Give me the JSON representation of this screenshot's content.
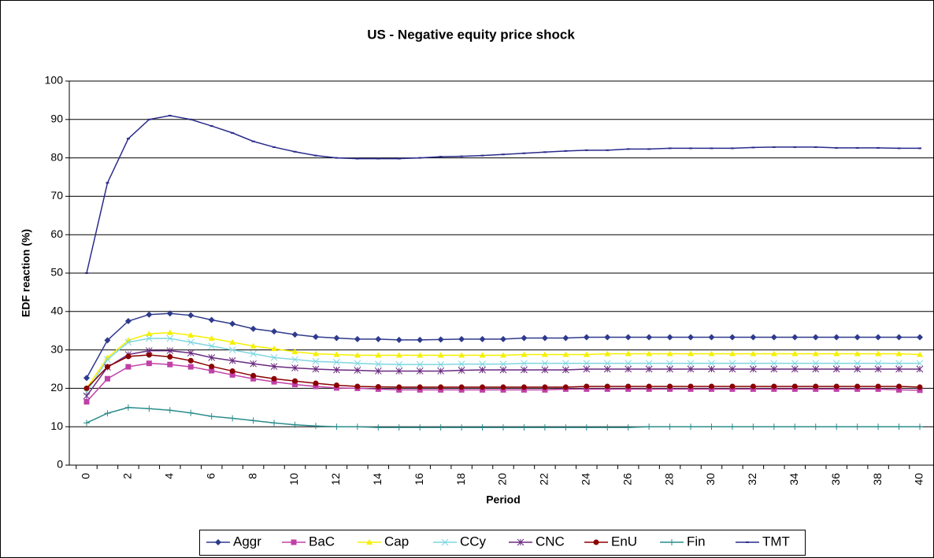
{
  "chart_data": {
    "type": "line",
    "title": "US - Negative equity price shock",
    "x_label": "Period",
    "y_label": "EDF reaction (%)",
    "x": [
      0,
      1,
      2,
      3,
      4,
      5,
      6,
      7,
      8,
      9,
      10,
      11,
      12,
      13,
      14,
      15,
      16,
      17,
      18,
      19,
      20,
      21,
      22,
      23,
      24,
      25,
      26,
      27,
      28,
      29,
      30,
      31,
      32,
      33,
      34,
      35,
      36,
      37,
      38,
      39,
      40
    ],
    "xlim": [
      0,
      40
    ],
    "xticks": [
      0,
      2,
      4,
      6,
      8,
      10,
      12,
      14,
      16,
      18,
      20,
      22,
      24,
      26,
      28,
      30,
      32,
      34,
      36,
      38,
      40
    ],
    "ylim": [
      0,
      100
    ],
    "yticks": [
      0,
      10,
      20,
      30,
      40,
      50,
      60,
      70,
      80,
      90,
      100
    ],
    "grid": true,
    "legend": "bottom",
    "series": [
      {
        "name": "Aggr",
        "color": "#2e3a8c",
        "marker": "diamond",
        "values": [
          22.7,
          32.5,
          37.5,
          39.2,
          39.5,
          39,
          37.8,
          36.8,
          35.5,
          34.8,
          34,
          33.4,
          33.1,
          32.8,
          32.8,
          32.6,
          32.6,
          32.7,
          32.8,
          32.8,
          32.8,
          33.1,
          33.1,
          33.1,
          33.3,
          33.3,
          33.3,
          33.3,
          33.3,
          33.3,
          33.3,
          33.3,
          33.3,
          33.3,
          33.3,
          33.3,
          33.3,
          33.3,
          33.3,
          33.3,
          33.3
        ]
      },
      {
        "name": "BaC",
        "color": "#c040a8",
        "marker": "square",
        "values": [
          16.5,
          22.5,
          25.6,
          26.5,
          26.2,
          25.6,
          24.6,
          23.5,
          22.5,
          21.7,
          21,
          20.5,
          20.1,
          20,
          19.8,
          19.6,
          19.6,
          19.6,
          19.6,
          19.6,
          19.6,
          19.6,
          19.6,
          19.8,
          19.8,
          19.8,
          19.8,
          19.8,
          19.8,
          19.8,
          19.8,
          19.8,
          19.8,
          19.8,
          19.8,
          19.8,
          19.8,
          19.8,
          19.8,
          19.6,
          19.5
        ]
      },
      {
        "name": "Cap",
        "color": "#f5f000",
        "marker": "triangle",
        "values": [
          20,
          28,
          32.5,
          34.2,
          34.5,
          33.8,
          33,
          32,
          31,
          30.3,
          29.5,
          29,
          28.8,
          28.6,
          28.6,
          28.6,
          28.6,
          28.6,
          28.6,
          28.6,
          28.6,
          28.8,
          28.8,
          28.8,
          28.8,
          29,
          29,
          29,
          29,
          29,
          29,
          29,
          29,
          29,
          29,
          29,
          29,
          29,
          29,
          29,
          28.8
        ]
      },
      {
        "name": "CCy",
        "color": "#7fd6e0",
        "marker": "x",
        "values": [
          19,
          27.5,
          32,
          33,
          33,
          32,
          31,
          30,
          29,
          28,
          27.5,
          27,
          26.8,
          26.5,
          26.3,
          26.2,
          26.2,
          26.2,
          26.3,
          26.3,
          26.3,
          26.5,
          26.5,
          26.5,
          26.5,
          26.5,
          26.5,
          26.5,
          26.5,
          26.5,
          26.5,
          26.5,
          26.5,
          26.5,
          26.5,
          26.5,
          26.5,
          26.5,
          26.5,
          26.5,
          26.5
        ]
      },
      {
        "name": "CNC",
        "color": "#6a2a80",
        "marker": "star",
        "values": [
          18,
          25.5,
          28.8,
          29.8,
          29.8,
          29.2,
          28,
          27.2,
          26.4,
          25.7,
          25.3,
          25,
          24.8,
          24.7,
          24.5,
          24.5,
          24.5,
          24.5,
          24.7,
          24.8,
          24.8,
          24.8,
          24.8,
          24.8,
          25,
          25,
          25,
          25,
          25,
          25,
          25,
          25,
          25,
          25,
          25,
          25,
          25,
          25,
          25,
          25,
          25
        ]
      },
      {
        "name": "EnU",
        "color": "#8b0000",
        "marker": "circle",
        "values": [
          20,
          25.6,
          28.3,
          28.7,
          28.2,
          27.2,
          25.7,
          24.5,
          23.3,
          22.5,
          21.9,
          21.3,
          20.8,
          20.5,
          20.4,
          20.3,
          20.3,
          20.3,
          20.3,
          20.3,
          20.3,
          20.3,
          20.3,
          20.3,
          20.5,
          20.5,
          20.5,
          20.5,
          20.5,
          20.5,
          20.5,
          20.5,
          20.5,
          20.5,
          20.5,
          20.5,
          20.5,
          20.5,
          20.5,
          20.5,
          20.3
        ]
      },
      {
        "name": "Fin",
        "color": "#2a8c8c",
        "marker": "plus",
        "values": [
          11,
          13.5,
          15,
          14.7,
          14.3,
          13.6,
          12.7,
          12.2,
          11.6,
          11,
          10.5,
          10.2,
          10,
          10,
          9.8,
          9.8,
          9.8,
          9.8,
          9.8,
          9.8,
          9.8,
          9.8,
          9.8,
          9.8,
          9.8,
          9.8,
          9.8,
          10,
          10,
          10,
          10,
          10,
          10,
          10,
          10,
          10,
          10,
          10,
          10,
          10,
          10
        ]
      },
      {
        "name": "TMT",
        "color": "#2a2a8c",
        "marker": "dash",
        "values": [
          50,
          73.5,
          85,
          90,
          91,
          90,
          88.3,
          86.5,
          84.3,
          82.8,
          81.6,
          80.6,
          80,
          79.8,
          79.8,
          79.8,
          80,
          80.3,
          80.4,
          80.6,
          80.9,
          81.2,
          81.5,
          81.8,
          82,
          82,
          82.3,
          82.3,
          82.5,
          82.5,
          82.5,
          82.5,
          82.7,
          82.8,
          82.8,
          82.8,
          82.6,
          82.6,
          82.6,
          82.5,
          82.5
        ]
      }
    ]
  }
}
